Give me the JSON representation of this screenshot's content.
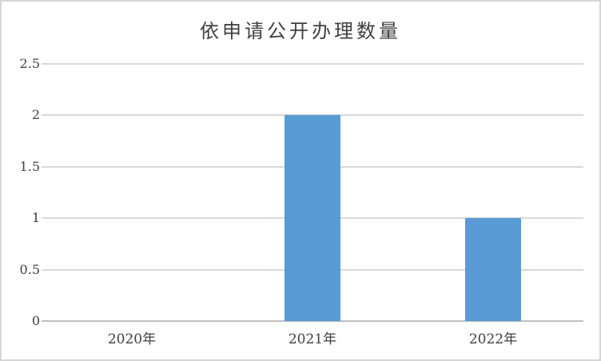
{
  "window": {
    "background_color": "#FFFFFF",
    "border_color": "#D6D6D6"
  },
  "chart_data": {
    "type": "bar",
    "title": "依申请公开办理数量",
    "categories": [
      "2020年",
      "2021年",
      "2022年"
    ],
    "values": [
      0,
      2,
      1
    ],
    "series": [
      {
        "name": "依申请公开办理数量",
        "values": [
          0,
          2,
          1
        ]
      }
    ],
    "xlabel": "",
    "ylabel": "",
    "ylim": [
      0,
      2.5
    ],
    "ytick_values": [
      0,
      0.5,
      1,
      1.5,
      2,
      2.5
    ],
    "ytick_labels": [
      "0",
      "0.5",
      "1",
      "1.5",
      "2",
      "2.5"
    ],
    "grid": true,
    "legend_position": "none",
    "colors": {
      "bar": "#5B9BD5",
      "gridline": "#D9D9D9",
      "baseline": "#BFBFBF",
      "text": "#404040",
      "title": "#404040"
    }
  }
}
